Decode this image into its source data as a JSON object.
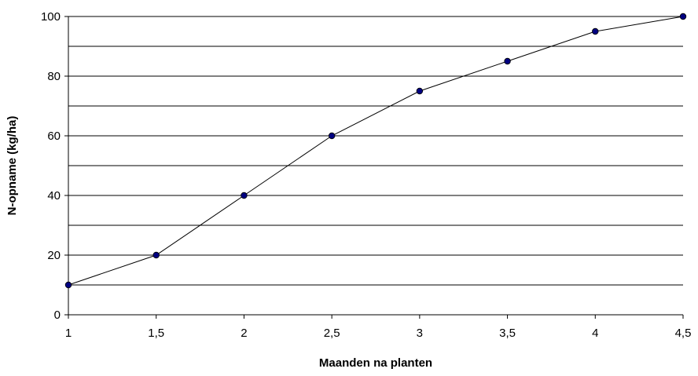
{
  "chart_data": {
    "type": "line",
    "xlabel": "Maanden na planten",
    "ylabel": "N-opname (kg/ha)",
    "x": [
      1,
      1.5,
      2,
      2.5,
      3,
      3.5,
      4,
      4.5
    ],
    "x_tick_labels": [
      "1",
      "1,5",
      "2",
      "2,5",
      "3",
      "3,5",
      "4",
      "4,5"
    ],
    "y_tick_labels": [
      "0",
      "20",
      "40",
      "60",
      "80",
      "100"
    ],
    "y_ticks": [
      0,
      20,
      40,
      60,
      80,
      100
    ],
    "series": [
      {
        "values": [
          10,
          20,
          40,
          60,
          75,
          85,
          95,
          100
        ]
      }
    ],
    "xlim": [
      1,
      4.5
    ],
    "ylim": [
      0,
      100
    ],
    "gridlines_y_every": 10,
    "grid": "horizontal",
    "legend": "none",
    "line_color": "#000000",
    "marker_color": "#000080"
  }
}
